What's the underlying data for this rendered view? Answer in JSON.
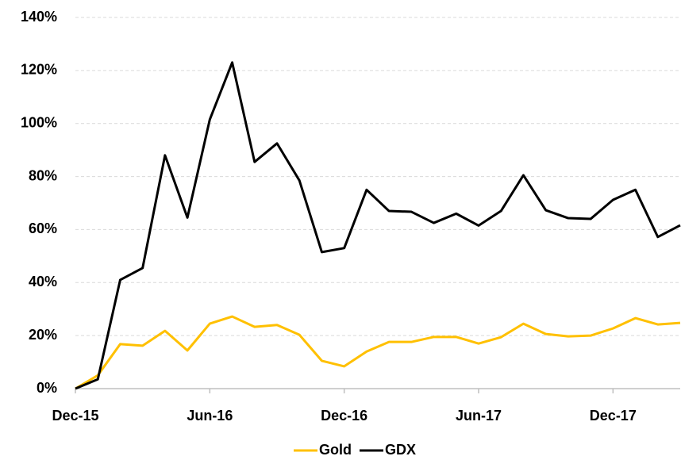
{
  "chart_data": {
    "type": "line",
    "categories": [
      "Dec-15",
      null,
      null,
      null,
      null,
      null,
      "Jun-16",
      null,
      null,
      null,
      null,
      null,
      "Dec-16",
      null,
      null,
      null,
      null,
      null,
      "Jun-17",
      null,
      null,
      null,
      null,
      null,
      "Dec-17",
      null,
      null,
      null
    ],
    "series": [
      {
        "name": "Gold",
        "color": "#FFC000",
        "values": [
          0,
          5,
          16.8,
          16.2,
          21.8,
          14.4,
          24.5,
          27.2,
          23.3,
          24,
          20.3,
          10.5,
          8.4,
          14,
          17.6,
          17.6,
          19.5,
          19.5,
          17,
          19.4,
          24.5,
          20.6,
          19.7,
          20,
          22.7,
          26.6,
          24.2,
          24.8
        ]
      },
      {
        "name": "GDX",
        "color": "#000000",
        "values": [
          0,
          3.5,
          41,
          45.5,
          88,
          64.5,
          101.5,
          123,
          85.5,
          92.5,
          78.5,
          51.5,
          53,
          75,
          67,
          66.7,
          62.5,
          66,
          61.5,
          67,
          80.5,
          67.3,
          64.3,
          64,
          71.2,
          75,
          57.2,
          61.6
        ]
      }
    ],
    "ylim": [
      0,
      140
    ],
    "yticks": [
      {
        "value": 0,
        "label": "0%"
      },
      {
        "value": 20,
        "label": "20%"
      },
      {
        "value": 40,
        "label": "40%"
      },
      {
        "value": 60,
        "label": "60%"
      },
      {
        "value": 80,
        "label": "80%"
      },
      {
        "value": 100,
        "label": "100%"
      },
      {
        "value": 120,
        "label": "120%"
      },
      {
        "value": 140,
        "label": "140%"
      }
    ],
    "grid": true,
    "legend": "bottom"
  }
}
